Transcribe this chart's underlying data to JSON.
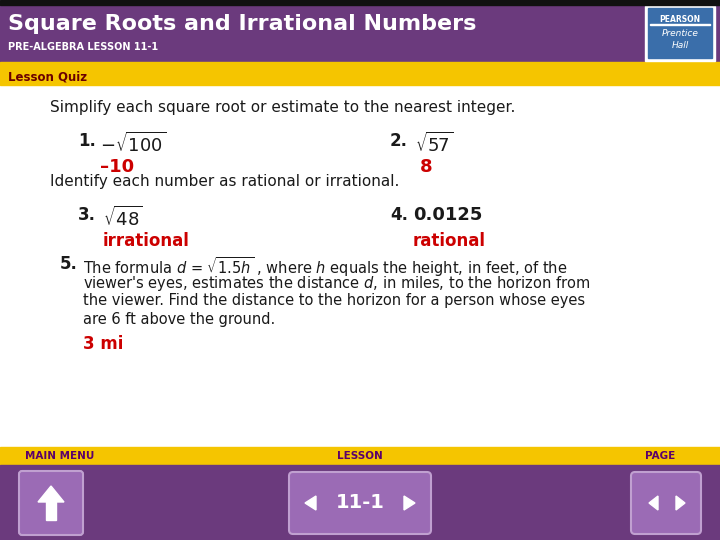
{
  "title": "Square Roots and Irrational Numbers",
  "subtitle": "PRE-ALGEBRA LESSON 11-1",
  "header_bg": "#6B3A7D",
  "header_text_color": "#FFFFFF",
  "gold_color": "#F5C500",
  "lesson_quiz_label": "Lesson Quiz",
  "lesson_quiz_bg": "#F5C500",
  "lesson_quiz_text_color": "#6B0000",
  "body_bg": "#FFFFFF",
  "body_text_color": "#1a1a1a",
  "answer_color": "#CC0000",
  "footer_bg": "#F5C500",
  "footer_text_color": "#4B0082",
  "section1_text": "Simplify each square root or estimate to the nearest integer.",
  "q1_answer": "–10",
  "q2_answer": "8",
  "section2_text": "Identify each number as rational or irrational.",
  "q3_answer": "irrational",
  "q4_answer": "rational",
  "q5_answer": "3 mi",
  "footer_labels": [
    "MAIN MENU",
    "LESSON",
    "PAGE"
  ],
  "footer_lesson": "11-1",
  "pearson_bg": "#3A6EAA",
  "nav_btn_color": "#9B6BB5"
}
